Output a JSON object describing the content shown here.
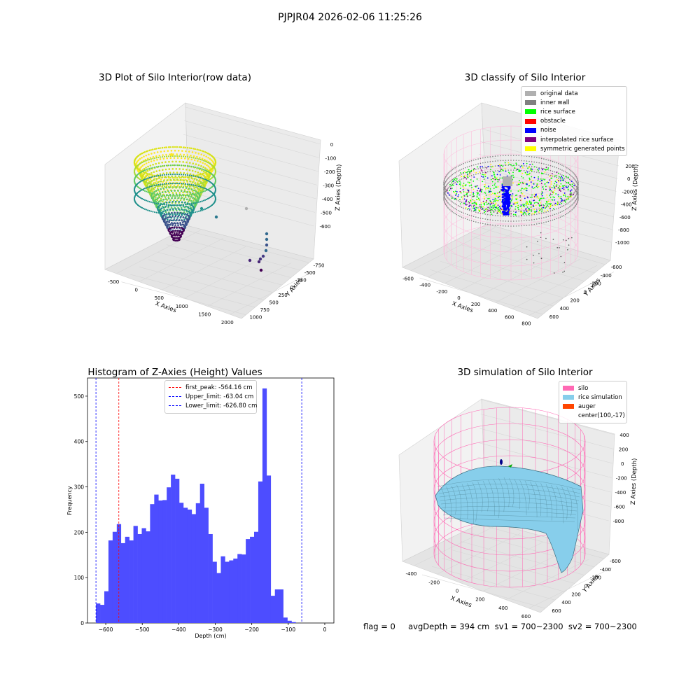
{
  "suptitle": "PJPJR04 2026-02-06 11:25:26",
  "panels": {
    "p1": {
      "title": "3D Plot of Silo Interior(row data)",
      "xlabel": "X Axies",
      "ylabel": "Y Axies",
      "zlabel": "Z Axies (Depth)",
      "xticks": [
        "-500",
        "0",
        "500",
        "1000",
        "1500",
        "2000"
      ],
      "yticks": [
        "-750",
        "-500",
        "-250",
        "0",
        "250",
        "500",
        "750",
        "1000"
      ],
      "zticks": [
        "0",
        "-100",
        "-200",
        "-300",
        "-400",
        "-500",
        "-600"
      ]
    },
    "p2": {
      "title": "3D classify of Silo Interior",
      "xlabel": "X Axies",
      "ylabel": "Y Axies",
      "zlabel": "Z Axies (Depth)",
      "xticks": [
        "-600",
        "-400",
        "-200",
        "0",
        "200",
        "400",
        "600",
        "800"
      ],
      "yticks": [
        "-600",
        "-400",
        "-200",
        "0",
        "200",
        "400",
        "600"
      ],
      "zticks": [
        "200",
        "0",
        "-200",
        "-400",
        "-600",
        "-800",
        "-1000"
      ],
      "legend": [
        {
          "label": "original data",
          "color": "#b0b0b0"
        },
        {
          "label": "inner wall",
          "color": "#808080"
        },
        {
          "label": "rice surface",
          "color": "#00ff00"
        },
        {
          "label": "obstacle",
          "color": "#ff0000"
        },
        {
          "label": "noise",
          "color": "#0000ff"
        },
        {
          "label": "interpolated rice surface",
          "color": "#800080"
        },
        {
          "label": "symmetric generated points",
          "color": "#ffff00"
        }
      ]
    },
    "p3": {
      "title": "Histogram of Z-Axies (Height) Values",
      "xlabel": "Depth (cm)",
      "ylabel": "Frequency",
      "legend": [
        {
          "label": "first_peak: -564.16 cm",
          "color": "#ff0000"
        },
        {
          "label": "Upper_limit: -63.04 cm",
          "color": "#0000ff"
        },
        {
          "label": "Lower_limit: -626.80 cm",
          "color": "#0000ff"
        }
      ]
    },
    "p4": {
      "title": "3D simulation of Silo Interior",
      "xlabel": "X Axies",
      "ylabel": "Y Axies",
      "zlabel": "Z Axies (Depth)",
      "xticks": [
        "-400",
        "-200",
        "0",
        "200",
        "400",
        "600"
      ],
      "yticks": [
        "-600",
        "-400",
        "-200",
        "0",
        "200",
        "400",
        "600"
      ],
      "zticks": [
        "400",
        "200",
        "0",
        "-200",
        "-400",
        "-600",
        "-800"
      ],
      "legend": [
        {
          "label": "silo",
          "color": "#ff69b4"
        },
        {
          "label": "rice simulation",
          "color": "#87ceeb"
        },
        {
          "label": "auger",
          "color": "#ff4500"
        },
        {
          "label": "center(100,-17)",
          "color": ""
        }
      ]
    }
  },
  "bottom_info": "flag = 0     avgDepth = 394 cm  sv1 = 700~2300  sv2 = 700~2300",
  "chart_data": [
    {
      "type": "scatter",
      "title": "3D Plot of Silo Interior(row data)",
      "xlabel": "X Axies",
      "ylabel": "Y Axies",
      "zlabel": "Z Axies (Depth)",
      "xlim": [
        -600,
        2100
      ],
      "ylim": [
        -800,
        1100
      ],
      "zlim": [
        -650,
        0
      ]
    },
    {
      "type": "scatter",
      "title": "3D classify of Silo Interior",
      "xlabel": "X Axies",
      "ylabel": "Y Axies",
      "zlabel": "Z Axies (Depth)",
      "xlim": [
        -650,
        850
      ],
      "ylim": [
        -650,
        650
      ],
      "zlim": [
        -1100,
        200
      ],
      "series": [
        {
          "name": "original data",
          "color": "#b0b0b0"
        },
        {
          "name": "inner wall",
          "color": "#808080"
        },
        {
          "name": "rice surface",
          "color": "#00ff00"
        },
        {
          "name": "obstacle",
          "color": "#ff0000"
        },
        {
          "name": "noise",
          "color": "#0000ff"
        },
        {
          "name": "interpolated rice surface",
          "color": "#800080"
        },
        {
          "name": "symmetric generated points",
          "color": "#ffff00"
        }
      ]
    },
    {
      "type": "bar",
      "title": "Histogram of Z-Axies (Height) Values",
      "xlabel": "Depth (cm)",
      "ylabel": "Frequency",
      "xlim": [
        -650,
        25
      ],
      "ylim": [
        0,
        540
      ],
      "xticks": [
        -600,
        -500,
        -400,
        -300,
        -200,
        -100,
        0
      ],
      "yticks": [
        0,
        100,
        200,
        300,
        400,
        500
      ],
      "bin_start": -626.8,
      "bin_width": 11.4,
      "values": [
        43,
        40,
        70,
        182,
        201,
        218,
        176,
        190,
        182,
        214,
        196,
        209,
        202,
        262,
        283,
        270,
        271,
        299,
        327,
        318,
        265,
        254,
        250,
        240,
        264,
        307,
        254,
        196,
        135,
        110,
        147,
        135,
        138,
        142,
        152,
        151,
        185,
        190,
        201,
        312,
        517,
        325,
        60,
        74,
        74,
        12,
        5,
        2
      ],
      "vlines": [
        {
          "label": "first_peak: -564.16 cm",
          "x": -564.16,
          "color": "#ff0000"
        },
        {
          "label": "Upper_limit: -63.04 cm",
          "x": -63.04,
          "color": "#0000ff"
        },
        {
          "label": "Lower_limit: -626.80 cm",
          "x": -626.8,
          "color": "#0000ff"
        }
      ],
      "bar_color": "#4d4dff"
    },
    {
      "type": "area",
      "title": "3D simulation of Silo Interior",
      "xlabel": "X Axies",
      "ylabel": "Y Axies",
      "zlabel": "Z Axies (Depth)",
      "xlim": [
        -500,
        700
      ],
      "ylim": [
        -650,
        650
      ],
      "zlim": [
        -900,
        400
      ],
      "series": [
        {
          "name": "silo",
          "color": "#ff69b4"
        },
        {
          "name": "rice simulation",
          "color": "#87ceeb"
        },
        {
          "name": "auger",
          "color": "#ff4500"
        },
        {
          "name": "center(100,-17)"
        }
      ]
    }
  ]
}
